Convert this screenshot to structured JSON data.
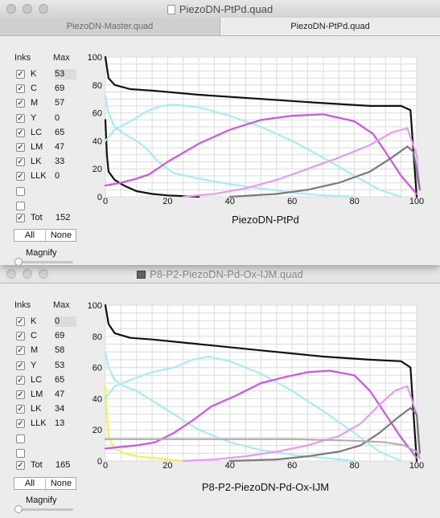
{
  "windows": [
    {
      "title": "PiezoDN-PtPd.quad",
      "tabs": [
        "PiezoDN-Master.quad",
        "PiezoDN-PtPd.quad"
      ],
      "inks_header": "Inks",
      "max_header": "Max",
      "inks": [
        {
          "label": "K",
          "max": "53",
          "checked": true
        },
        {
          "label": "C",
          "max": "69",
          "checked": true
        },
        {
          "label": "M",
          "max": "57",
          "checked": true
        },
        {
          "label": "Y",
          "max": "0",
          "checked": true
        },
        {
          "label": "LC",
          "max": "65",
          "checked": true
        },
        {
          "label": "LM",
          "max": "47",
          "checked": true
        },
        {
          "label": "LK",
          "max": "33",
          "checked": true
        },
        {
          "label": "LLK",
          "max": "0",
          "checked": true
        }
      ],
      "tot_label": "Tot",
      "tot_value": "152",
      "all_label": "All",
      "none_label": "None",
      "magnify_label": "Magnify",
      "chart_title": "PiezoDN-PtPd"
    },
    {
      "title": "P8-P2-PiezoDN-Pd-Ox-IJM.quad",
      "inks_header": "Inks",
      "max_header": "Max",
      "inks": [
        {
          "label": "K",
          "max": "0",
          "checked": true
        },
        {
          "label": "C",
          "max": "69",
          "checked": true
        },
        {
          "label": "M",
          "max": "58",
          "checked": true
        },
        {
          "label": "Y",
          "max": "53",
          "checked": true
        },
        {
          "label": "LC",
          "max": "65",
          "checked": true
        },
        {
          "label": "LM",
          "max": "47",
          "checked": true
        },
        {
          "label": "LK",
          "max": "34",
          "checked": true
        },
        {
          "label": "LLK",
          "max": "13",
          "checked": true
        }
      ],
      "tot_label": "Tot",
      "tot_value": "165",
      "all_label": "All",
      "none_label": "None",
      "magnify_label": "Magnify",
      "chart_title": "P8-P2-PiezoDN-Pd-Ox-IJM"
    }
  ],
  "chart_data": [
    {
      "type": "line",
      "title": "PiezoDN-PtPd",
      "xlim": [
        0,
        100
      ],
      "ylim": [
        0,
        100
      ],
      "x_ticks": [
        0,
        20,
        40,
        60,
        80,
        100
      ],
      "y_ticks": [
        0,
        20,
        40,
        60,
        80,
        100
      ],
      "grid": true,
      "series": [
        {
          "color": "#111111",
          "points": [
            [
              0,
              100
            ],
            [
              1,
              85
            ],
            [
              3,
              80
            ],
            [
              8,
              77
            ],
            [
              15,
              76
            ],
            [
              30,
              73
            ],
            [
              50,
              70
            ],
            [
              70,
              67
            ],
            [
              85,
              65
            ],
            [
              95,
              65
            ],
            [
              98,
              62
            ],
            [
              100,
              0
            ]
          ]
        },
        {
          "color": "#111111",
          "points": [
            [
              0,
              55
            ],
            [
              0.5,
              30
            ],
            [
              1,
              18
            ],
            [
              3,
              12
            ],
            [
              6,
              8
            ],
            [
              10,
              4
            ],
            [
              15,
              2
            ],
            [
              20,
              1
            ],
            [
              30,
              0
            ]
          ]
        },
        {
          "color": "#a8ecf2",
          "points": [
            [
              0,
              72
            ],
            [
              1,
              60
            ],
            [
              3,
              50
            ],
            [
              6,
              45
            ],
            [
              10,
              40
            ],
            [
              13,
              35
            ],
            [
              17,
              25
            ],
            [
              22,
              17
            ],
            [
              30,
              13
            ],
            [
              40,
              9
            ],
            [
              50,
              6
            ],
            [
              60,
              3
            ],
            [
              70,
              1
            ],
            [
              80,
              0
            ]
          ]
        },
        {
          "color": "#a8ecf2",
          "points": [
            [
              0,
              40
            ],
            [
              3,
              48
            ],
            [
              8,
              54
            ],
            [
              14,
              62
            ],
            [
              18,
              65
            ],
            [
              22,
              66
            ],
            [
              30,
              64
            ],
            [
              40,
              58
            ],
            [
              50,
              50
            ],
            [
              60,
              40
            ],
            [
              70,
              28
            ],
            [
              80,
              15
            ],
            [
              88,
              5
            ],
            [
              95,
              0
            ]
          ]
        },
        {
          "color": "#cc55e6",
          "points": [
            [
              0,
              8
            ],
            [
              5,
              10
            ],
            [
              10,
              13
            ],
            [
              14,
              16
            ],
            [
              20,
              25
            ],
            [
              30,
              38
            ],
            [
              40,
              48
            ],
            [
              50,
              55
            ],
            [
              60,
              58
            ],
            [
              70,
              59
            ],
            [
              80,
              54
            ],
            [
              86,
              45
            ],
            [
              90,
              32
            ],
            [
              95,
              15
            ],
            [
              100,
              2
            ]
          ]
        },
        {
          "color": "#e49cf0",
          "points": [
            [
              25,
              0
            ],
            [
              35,
              2
            ],
            [
              45,
              6
            ],
            [
              55,
              12
            ],
            [
              65,
              20
            ],
            [
              75,
              28
            ],
            [
              85,
              37
            ],
            [
              92,
              46
            ],
            [
              97,
              49
            ],
            [
              100,
              30
            ],
            [
              101,
              5
            ]
          ]
        },
        {
          "color": "#7a7a7a",
          "points": [
            [
              40,
              0
            ],
            [
              55,
              2
            ],
            [
              65,
              5
            ],
            [
              75,
              10
            ],
            [
              85,
              18
            ],
            [
              92,
              28
            ],
            [
              97,
              36
            ],
            [
              99,
              32
            ],
            [
              101,
              5
            ]
          ]
        }
      ]
    },
    {
      "type": "line",
      "title": "P8-P2-PiezoDN-Pd-Ox-IJM",
      "xlim": [
        0,
        100
      ],
      "ylim": [
        0,
        100
      ],
      "x_ticks": [
        0,
        20,
        40,
        60,
        80,
        100
      ],
      "y_ticks": [
        0,
        20,
        40,
        60,
        80,
        100
      ],
      "grid": true,
      "series": [
        {
          "color": "#111111",
          "points": [
            [
              0,
              100
            ],
            [
              1,
              88
            ],
            [
              3,
              82
            ],
            [
              8,
              79
            ],
            [
              15,
              78
            ],
            [
              30,
              75
            ],
            [
              50,
              71
            ],
            [
              70,
              67
            ],
            [
              85,
              65
            ],
            [
              95,
              64
            ],
            [
              98,
              60
            ],
            [
              100,
              0
            ]
          ]
        },
        {
          "color": "#f0f05a",
          "points": [
            [
              0,
              48
            ],
            [
              0.5,
              30
            ],
            [
              1,
              15
            ],
            [
              3,
              8
            ],
            [
              6,
              5
            ],
            [
              10,
              3
            ],
            [
              15,
              2
            ],
            [
              20,
              1
            ],
            [
              25,
              0
            ]
          ]
        },
        {
          "color": "#a8ecf2",
          "points": [
            [
              0,
              70
            ],
            [
              1,
              60
            ],
            [
              3,
              52
            ],
            [
              6,
              48
            ],
            [
              10,
              45
            ],
            [
              14,
              40
            ],
            [
              18,
              35
            ],
            [
              22,
              30
            ],
            [
              30,
              20
            ],
            [
              40,
              12
            ],
            [
              50,
              7
            ],
            [
              60,
              4
            ],
            [
              70,
              2
            ],
            [
              80,
              0
            ]
          ]
        },
        {
          "color": "#a8ecf2",
          "points": [
            [
              0,
              40
            ],
            [
              3,
              48
            ],
            [
              8,
              52
            ],
            [
              15,
              57
            ],
            [
              22,
              60
            ],
            [
              28,
              65
            ],
            [
              33,
              67
            ],
            [
              40,
              64
            ],
            [
              50,
              56
            ],
            [
              60,
              45
            ],
            [
              70,
              32
            ],
            [
              80,
              18
            ],
            [
              88,
              6
            ],
            [
              95,
              0
            ]
          ]
        },
        {
          "color": "#cc55e6",
          "points": [
            [
              0,
              8
            ],
            [
              5,
              9
            ],
            [
              10,
              10
            ],
            [
              16,
              12
            ],
            [
              22,
              18
            ],
            [
              28,
              26
            ],
            [
              34,
              35
            ],
            [
              42,
              42
            ],
            [
              50,
              50
            ],
            [
              58,
              54
            ],
            [
              65,
              57
            ],
            [
              72,
              58
            ],
            [
              80,
              55
            ],
            [
              85,
              45
            ],
            [
              90,
              30
            ],
            [
              95,
              15
            ],
            [
              100,
              2
            ]
          ]
        },
        {
          "color": "#e49cf0",
          "points": [
            [
              25,
              0
            ],
            [
              35,
              1
            ],
            [
              45,
              3
            ],
            [
              55,
              6
            ],
            [
              65,
              10
            ],
            [
              75,
              16
            ],
            [
              82,
              24
            ],
            [
              88,
              36
            ],
            [
              93,
              45
            ],
            [
              97,
              48
            ],
            [
              100,
              30
            ],
            [
              101,
              5
            ]
          ]
        },
        {
          "color": "#7a7a7a",
          "points": [
            [
              40,
              0
            ],
            [
              55,
              1
            ],
            [
              65,
              3
            ],
            [
              75,
              6
            ],
            [
              82,
              10
            ],
            [
              88,
              18
            ],
            [
              94,
              28
            ],
            [
              98,
              34
            ],
            [
              100,
              30
            ],
            [
              101,
              5
            ]
          ]
        },
        {
          "color": "#b0b0b0",
          "points": [
            [
              0,
              14
            ],
            [
              20,
              14
            ],
            [
              40,
              14
            ],
            [
              60,
              14
            ],
            [
              80,
              13
            ],
            [
              90,
              12
            ],
            [
              96,
              10
            ],
            [
              100,
              6
            ],
            [
              101,
              2
            ]
          ]
        }
      ]
    }
  ]
}
